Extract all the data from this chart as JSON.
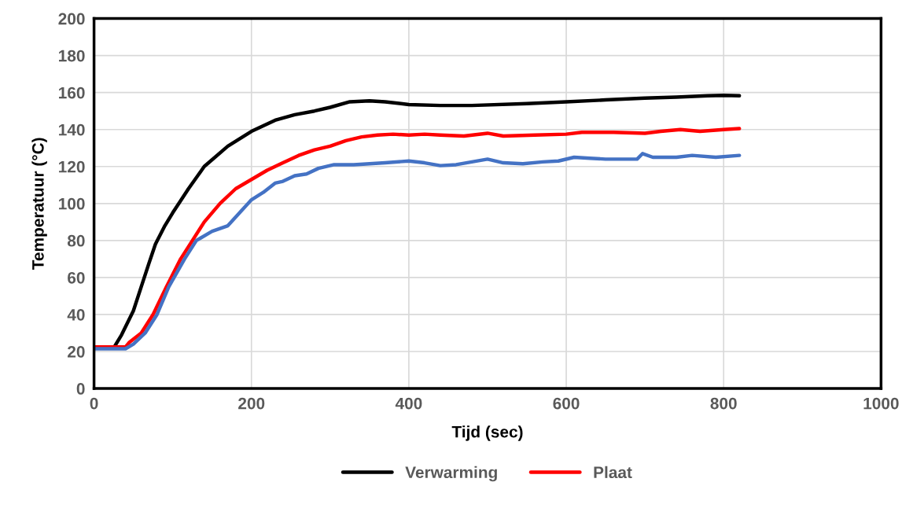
{
  "chart_data": {
    "type": "line",
    "xlabel": "Tijd (sec)",
    "ylabel": "Temperatuur (°C)",
    "xlim": [
      0,
      1000
    ],
    "xticks": [
      0,
      200,
      400,
      600,
      800,
      1000
    ],
    "ylim": [
      0,
      200
    ],
    "yticks": [
      0,
      20,
      40,
      60,
      80,
      100,
      120,
      140,
      160,
      180,
      200
    ],
    "grid": true,
    "legend": "bottom",
    "marker": "none",
    "line_style": "solid",
    "series": [
      {
        "name": "Verwarming",
        "color": "#000000",
        "x": [
          0,
          25,
          35,
          50,
          60,
          70,
          78,
          90,
          100,
          120,
          140,
          170,
          200,
          230,
          255,
          280,
          300,
          325,
          350,
          370,
          400,
          440,
          480,
          550,
          600,
          650,
          700,
          740,
          780,
          800,
          820
        ],
        "values": [
          22,
          22,
          29,
          42,
          55,
          68,
          78,
          88,
          95,
          108,
          120,
          131,
          139,
          145,
          148,
          150,
          152,
          155,
          155.5,
          155,
          153.5,
          153,
          153,
          154,
          155,
          156,
          157,
          157.5,
          158.3,
          158.5,
          158.3
        ]
      },
      {
        "name": "Plaat",
        "color": "#ff0000",
        "x": [
          0,
          40,
          45,
          60,
          75,
          92,
          110,
          125,
          140,
          160,
          180,
          200,
          220,
          240,
          260,
          280,
          300,
          320,
          340,
          360,
          380,
          400,
          420,
          440,
          470,
          500,
          520,
          560,
          600,
          620,
          660,
          700,
          720,
          745,
          770,
          800,
          820
        ],
        "values": [
          22.5,
          22.5,
          25,
          30,
          40,
          55,
          70,
          80,
          90,
          100,
          108,
          113,
          118,
          122,
          126,
          129,
          131,
          134,
          136,
          137,
          137.5,
          137,
          137.5,
          137,
          136.5,
          138,
          136.5,
          137,
          137.5,
          138.5,
          138.5,
          138,
          139,
          140,
          139,
          140,
          140.5
        ]
      },
      {
        "color": "#4472c4",
        "x": [
          0,
          40,
          50,
          65,
          80,
          95,
          115,
          130,
          150,
          170,
          185,
          200,
          215,
          230,
          240,
          255,
          270,
          285,
          305,
          330,
          370,
          400,
          420,
          440,
          460,
          480,
          500,
          520,
          545,
          570,
          590,
          610,
          630,
          650,
          690,
          697,
          710,
          740,
          760,
          790,
          820
        ],
        "values": [
          21.5,
          21.5,
          24,
          30,
          40,
          55,
          70,
          80,
          85,
          88,
          95,
          102,
          106,
          111,
          112,
          115,
          116,
          119,
          121,
          121,
          122,
          123,
          122,
          120.5,
          121,
          122.5,
          124,
          122,
          121.5,
          122.5,
          123,
          125,
          124.5,
          124,
          124,
          127,
          125,
          125,
          126,
          125,
          126
        ]
      }
    ]
  }
}
